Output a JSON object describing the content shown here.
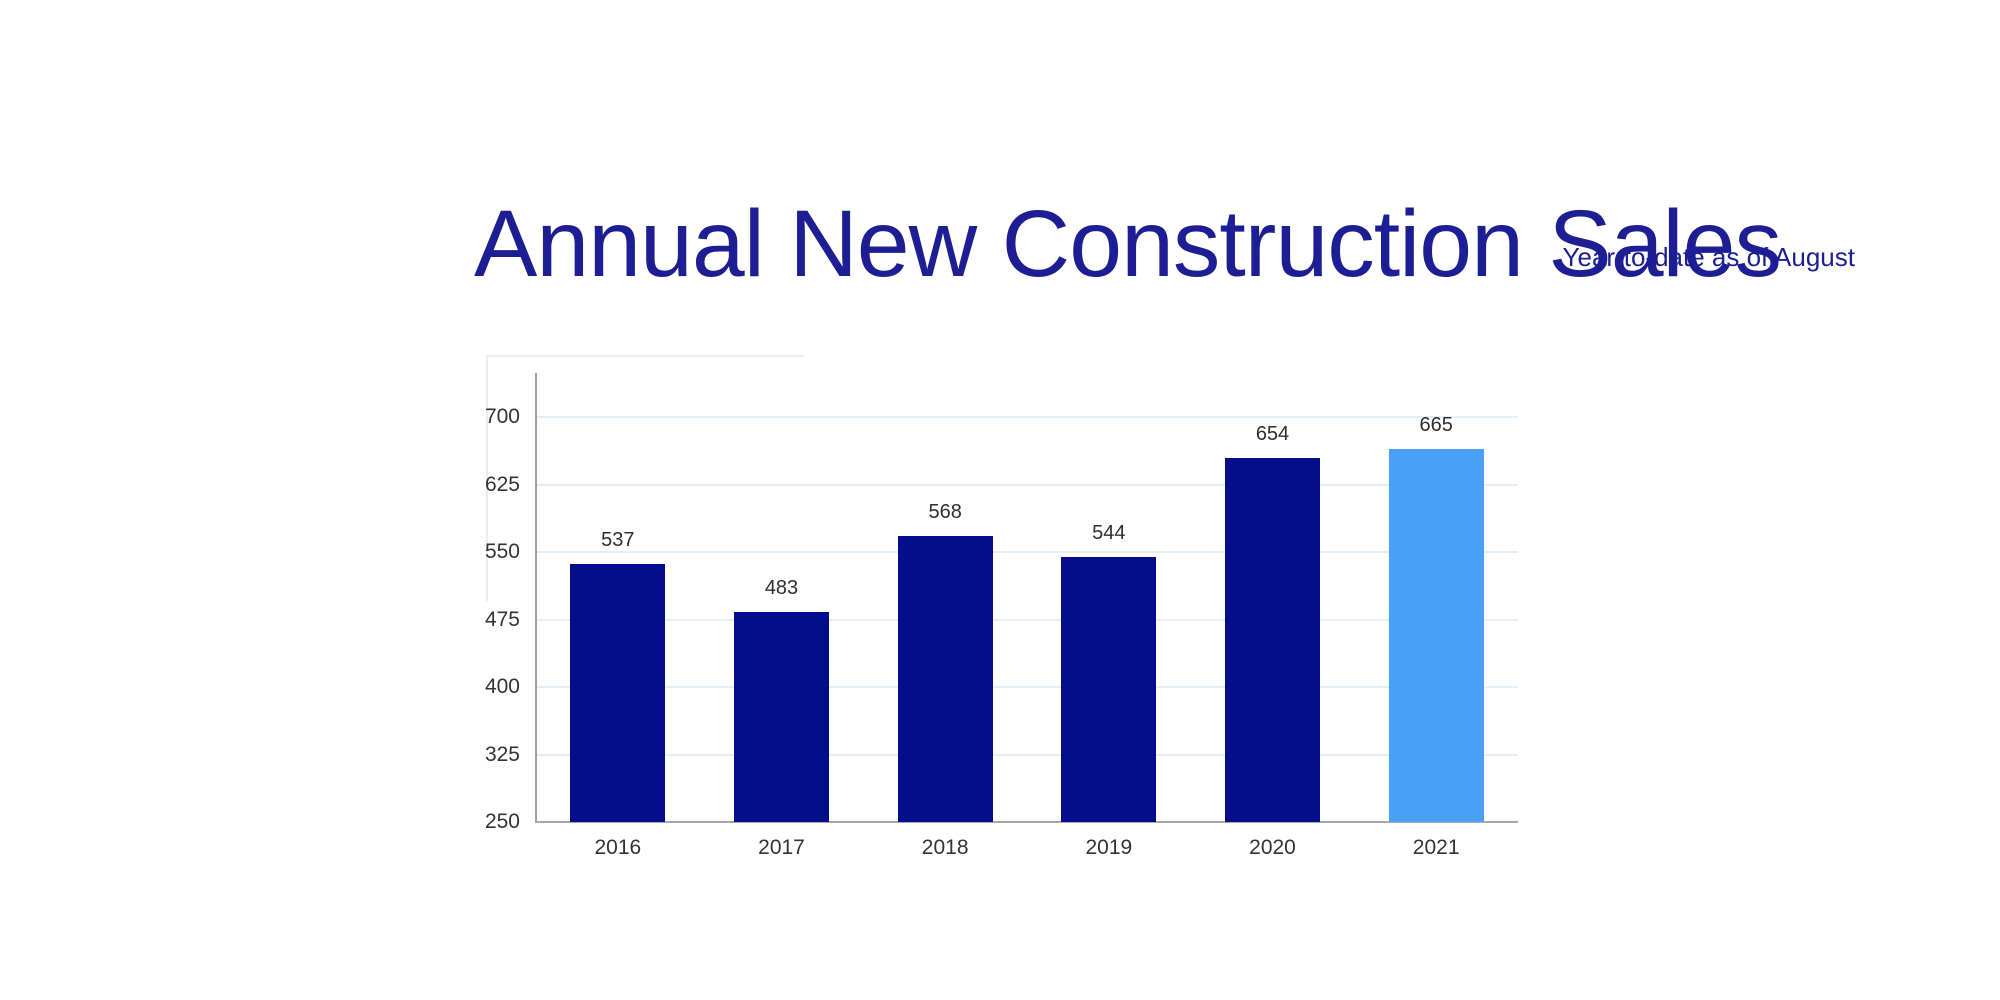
{
  "header": {
    "title": "Annual New Construction Sales",
    "subtitle": "Year-to-date as of August",
    "title_color": "#1d1d94",
    "subtitle_color": "#1d1d94"
  },
  "chart_data": {
    "type": "bar",
    "title": "Annual New Construction Sales",
    "subtitle": "Year-to-date as of August",
    "categories": [
      "2016",
      "2017",
      "2018",
      "2019",
      "2020",
      "2021"
    ],
    "values": [
      537,
      483,
      568,
      544,
      654,
      665
    ],
    "bar_colors": [
      "#040e8a",
      "#040e8a",
      "#040e8a",
      "#040e8a",
      "#040e8a",
      "#4aa0f6"
    ],
    "highlight_index": 5,
    "highlight_color": "#4aa0f6",
    "base_color": "#040e8a",
    "xlabel": "",
    "ylabel": "",
    "ylim": [
      250,
      700
    ],
    "yticks": [
      250,
      325,
      400,
      475,
      550,
      625,
      700
    ],
    "grid": true,
    "gridline_color": "#e4eef6",
    "axis_color": "#9e9e9e",
    "tick_label_color": "#333333",
    "value_label_color": "#2e2e2e",
    "legend_position": "none"
  }
}
